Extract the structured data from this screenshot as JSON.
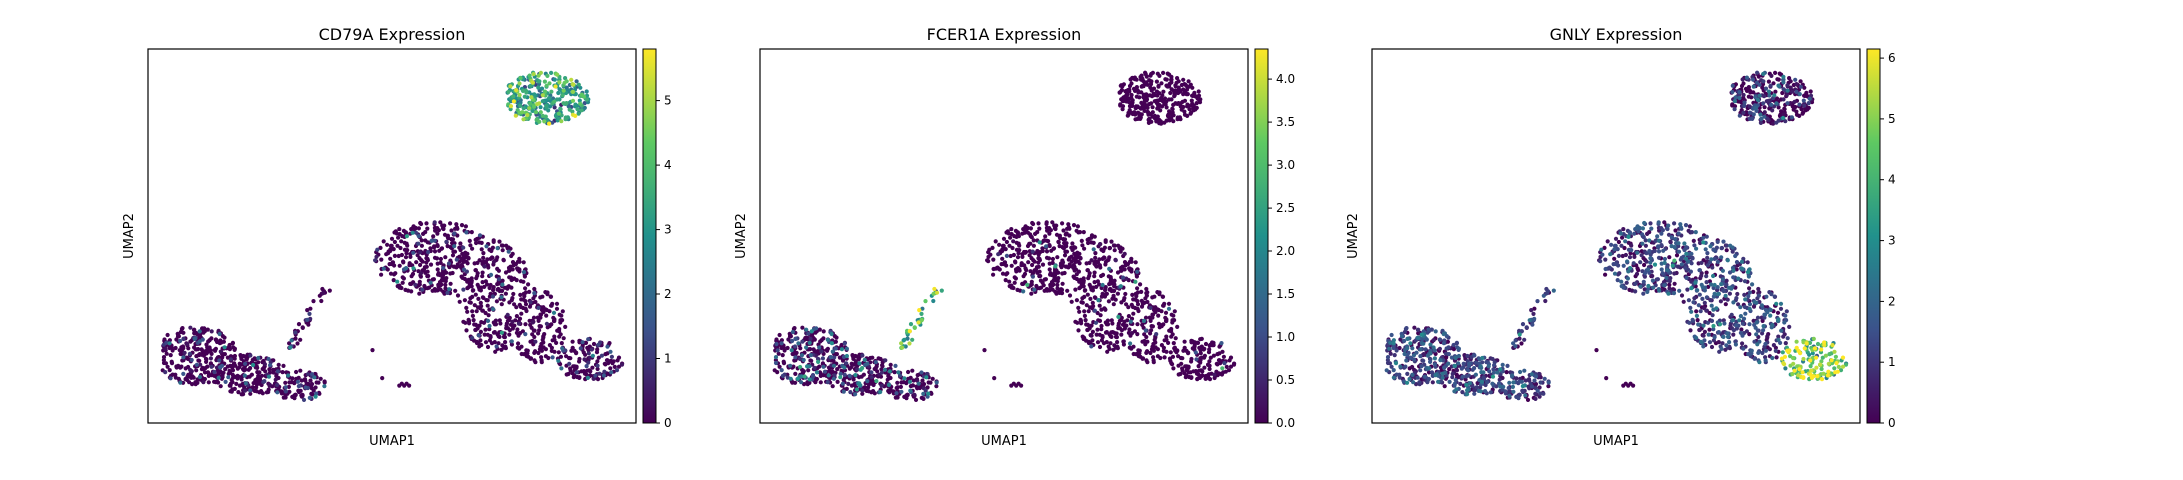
{
  "colormap": "viridis",
  "colormap_stops": [
    "#440154",
    "#3b528b",
    "#21918c",
    "#5ec962",
    "#fde725"
  ],
  "point_edge_color": "",
  "chart_data": [
    {
      "type": "scatter",
      "title": "CD79A Expression",
      "xlabel": "UMAP1",
      "ylabel": "UMAP2",
      "x_ticks": "none",
      "y_ticks": "none",
      "colorbar": {
        "min": 0,
        "max": 5.8,
        "ticks": [
          0,
          1,
          2,
          3,
          4,
          5
        ],
        "labels": [
          "0",
          "1",
          "2",
          "3",
          "4",
          "5"
        ]
      },
      "cluster_levels": {
        "B": 3.2,
        "DC": 0.12,
        "NK": 0.08,
        "T": 0.03,
        "MONO": 0.05,
        "PLATE": 0.0
      }
    },
    {
      "type": "scatter",
      "title": "FCER1A Expression",
      "xlabel": "UMAP1",
      "ylabel": "UMAP2",
      "x_ticks": "none",
      "y_ticks": "none",
      "colorbar": {
        "min": 0,
        "max": 4.35,
        "ticks": [
          0,
          0.5,
          1,
          1.5,
          2,
          2.5,
          3,
          3.5,
          4
        ],
        "labels": [
          "0.0",
          "0.5",
          "1.0",
          "1.5",
          "2.0",
          "2.5",
          "3.0",
          "3.5",
          "4.0"
        ]
      },
      "cluster_levels": {
        "B": 0.0,
        "DC": 2.8,
        "NK": 0.02,
        "T": 0.02,
        "MONO": 0.08,
        "PLATE": 0.0
      }
    },
    {
      "type": "scatter",
      "title": "GNLY Expression",
      "xlabel": "UMAP1",
      "ylabel": "UMAP2",
      "x_ticks": "none",
      "y_ticks": "none",
      "colorbar": {
        "min": 0,
        "max": 6.15,
        "ticks": [
          0,
          1,
          2,
          3,
          4,
          5,
          6
        ],
        "labels": [
          "0",
          "1",
          "2",
          "3",
          "4",
          "5",
          "6"
        ]
      },
      "cluster_levels": {
        "B": 0.15,
        "DC": 0.3,
        "NK": 4.8,
        "T": 0.9,
        "MONO": 0.35,
        "PLATE": 0.0
      }
    }
  ]
}
